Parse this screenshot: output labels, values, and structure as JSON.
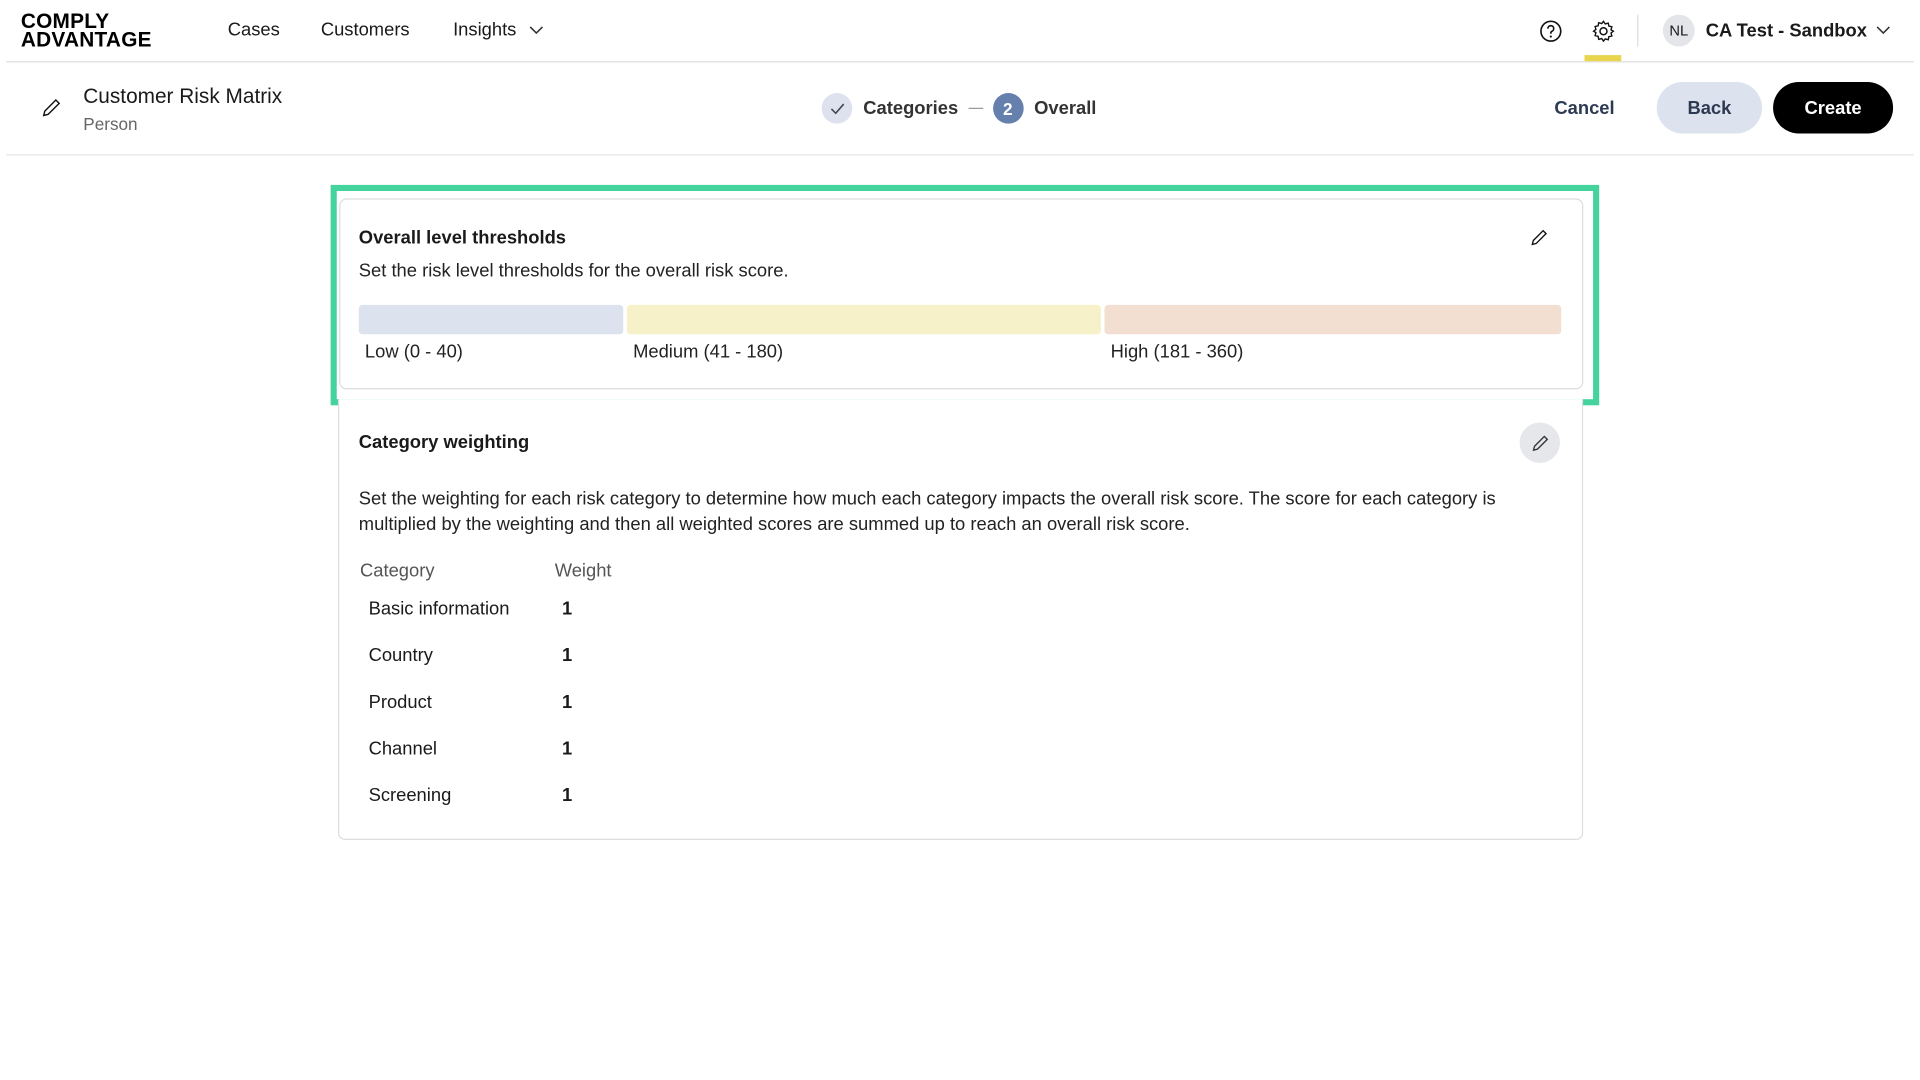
{
  "header": {
    "logo": [
      "COMPLY",
      "ADVANTAGE"
    ],
    "nav": [
      {
        "label": "Cases"
      },
      {
        "label": "Customers"
      },
      {
        "label": "Insights"
      }
    ],
    "avatar_initials": "NL",
    "account": "CA Test - Sandbox",
    "active_indicator_color": "#e8d44d"
  },
  "subheader": {
    "title": "Customer Risk Matrix",
    "subtitle": "Person",
    "steps": [
      {
        "label": "Categories",
        "state": "done"
      },
      {
        "number": "2",
        "label": "Overall",
        "state": "current"
      }
    ],
    "cancel": "Cancel",
    "back": "Back",
    "create": "Create"
  },
  "thresholds": {
    "title": "Overall level thresholds",
    "description": "Set the risk level thresholds for the overall risk score.",
    "levels": [
      {
        "label": "Low (0 - 40)",
        "min": 0,
        "max": 40,
        "color": "#dde3ee"
      },
      {
        "label": "Medium (41 - 180)",
        "min": 41,
        "max": 180,
        "color": "#f6f1c8"
      },
      {
        "label": "High (181 - 360)",
        "min": 181,
        "max": 360,
        "color": "#f2dfd2"
      }
    ],
    "highlight_color": "#45d39d"
  },
  "weighting": {
    "title": "Category weighting",
    "description": "Set the weighting for each risk category to determine how much each category impacts the overall risk score. The score for each category is multiplied by the weighting and then all weighted scores are summed up to reach an overall risk score.",
    "col_category": "Category",
    "col_weight": "Weight",
    "rows": [
      {
        "category": "Basic information",
        "weight": "1"
      },
      {
        "category": "Country",
        "weight": "1"
      },
      {
        "category": "Product",
        "weight": "1"
      },
      {
        "category": "Channel",
        "weight": "1"
      },
      {
        "category": "Screening",
        "weight": "1"
      }
    ]
  }
}
